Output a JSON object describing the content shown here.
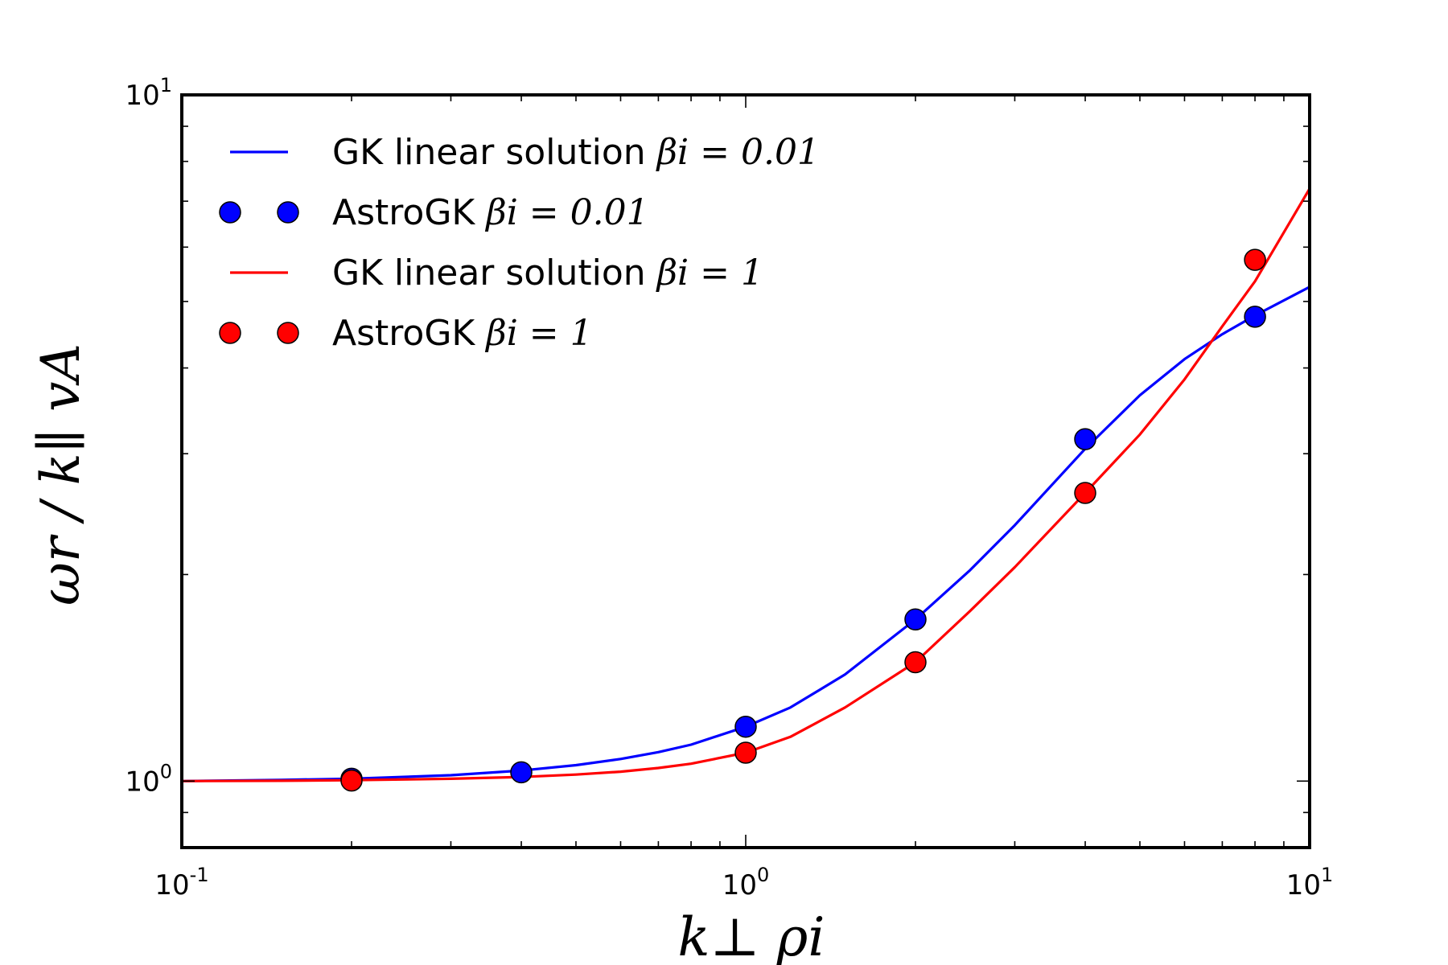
{
  "chart_data": {
    "type": "line",
    "xscale": "log",
    "yscale": "log",
    "xlim": [
      0.1,
      10
    ],
    "ylim": [
      0.8,
      10
    ],
    "grid": false,
    "legend_position": "top-left",
    "xlabel": "k⊥ ρi",
    "ylabel": "ωr / k∥ vA",
    "xtick_labels": [
      {
        "value": 0.1,
        "base": "10",
        "exp": "-1"
      },
      {
        "value": 1,
        "base": "10",
        "exp": "0"
      },
      {
        "value": 10,
        "base": "10",
        "exp": "1"
      }
    ],
    "ytick_labels": [
      {
        "value": 1,
        "base": "10",
        "exp": "0"
      },
      {
        "value": 10,
        "base": "10",
        "exp": "1"
      }
    ],
    "series": [
      {
        "name": "GK linear solution βi = 0.01",
        "legend_text": "GK linear solution",
        "legend_math": "βi = 0.01",
        "kind": "line",
        "color": "#0000ff",
        "x": [
          0.1,
          0.15,
          0.2,
          0.3,
          0.4,
          0.5,
          0.6,
          0.7,
          0.8,
          1.0,
          1.2,
          1.5,
          2.0,
          2.5,
          3.0,
          4.0,
          5.0,
          6.0,
          7.0,
          8.0,
          10.0
        ],
        "y": [
          1.0,
          1.004,
          1.008,
          1.02,
          1.036,
          1.055,
          1.077,
          1.102,
          1.13,
          1.2,
          1.28,
          1.43,
          1.72,
          2.03,
          2.36,
          3.05,
          3.65,
          4.12,
          4.48,
          4.77,
          5.25
        ]
      },
      {
        "name": "AstroGK βi = 0.01",
        "legend_text": "AstroGK",
        "legend_math": "βi = 0.01",
        "kind": "scatter",
        "color": "#0000ff",
        "x": [
          0.2,
          0.4,
          1.0,
          2.0,
          4.0,
          8.0
        ],
        "y": [
          1.008,
          1.03,
          1.2,
          1.72,
          3.15,
          4.75
        ]
      },
      {
        "name": "GK linear solution βi = 1",
        "legend_text": "GK linear solution",
        "legend_math": "βi = 1",
        "kind": "line",
        "color": "#ff0000",
        "x": [
          0.1,
          0.15,
          0.2,
          0.3,
          0.4,
          0.5,
          0.6,
          0.7,
          0.8,
          1.0,
          1.2,
          1.5,
          2.0,
          2.5,
          3.0,
          4.0,
          5.0,
          6.0,
          7.0,
          8.0,
          10.0
        ],
        "y": [
          1.0,
          1.001,
          1.003,
          1.008,
          1.014,
          1.022,
          1.032,
          1.045,
          1.06,
          1.1,
          1.16,
          1.28,
          1.49,
          1.77,
          2.05,
          2.63,
          3.2,
          3.85,
          4.6,
          5.35,
          7.3
        ]
      },
      {
        "name": "AstroGK βi = 1",
        "legend_text": "AstroGK",
        "legend_math": "βi = 1",
        "kind": "scatter",
        "color": "#ff0000",
        "x": [
          0.2,
          1.0,
          2.0,
          4.0,
          8.0
        ],
        "y": [
          1.002,
          1.1,
          1.49,
          2.63,
          5.75
        ]
      }
    ]
  }
}
